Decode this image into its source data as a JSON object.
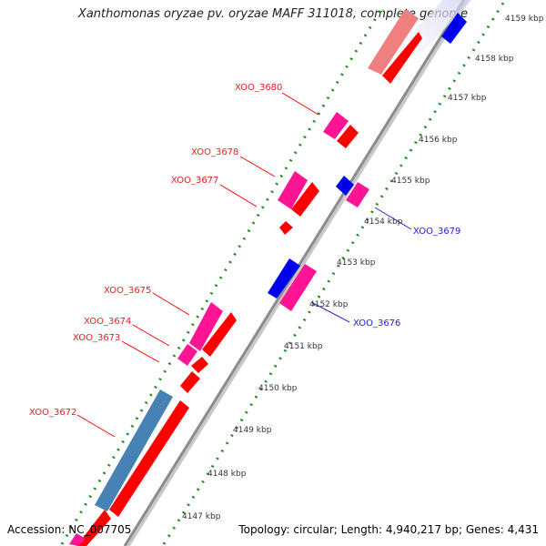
{
  "title": "Xanthomonas oryzae pv. oryzae MAFF 311018, complete genome",
  "footer": {
    "accession": "Accession: NC_007705",
    "summary": "Topology: circular; Length: 4,940,217 bp; Genes: 4,431"
  },
  "scale_labels": [
    "4147 kbp",
    "4148 kbp",
    "4149 kbp",
    "4150 kbp",
    "4151 kbp",
    "4152 kbp",
    "4153 kbp",
    "4154 kbp",
    "4155 kbp",
    "4156 kbp",
    "4157 kbp",
    "4158 kbp",
    "4159 kbp"
  ],
  "genes": [
    {
      "label": "XOO_3680",
      "color": "#e51f1f"
    },
    {
      "label": "XOO_3678",
      "color": "#e51f1f"
    },
    {
      "label": "XOO_3677",
      "color": "#e51f1f"
    },
    {
      "label": "XOO_3679",
      "color": "#1f1fd6"
    },
    {
      "label": "XOO_3675",
      "color": "#e51f1f"
    },
    {
      "label": "XOO_3676",
      "color": "#1f1fd6"
    },
    {
      "label": "XOO_3674",
      "color": "#e51f1f"
    },
    {
      "label": "XOO_3673",
      "color": "#e51f1f"
    },
    {
      "label": "XOO_3672",
      "color": "#e51f1f"
    }
  ],
  "colors": {
    "forward_cds": "#ff0000",
    "reverse_cds": "#0000ee",
    "forward_gene": "#ff1493",
    "reverse_gene": "#ff3399",
    "faded_cds": "#f08080",
    "other_gene": "#4682b4",
    "backbone": "#8c8c8c",
    "ruler": "#1e8c1e"
  }
}
